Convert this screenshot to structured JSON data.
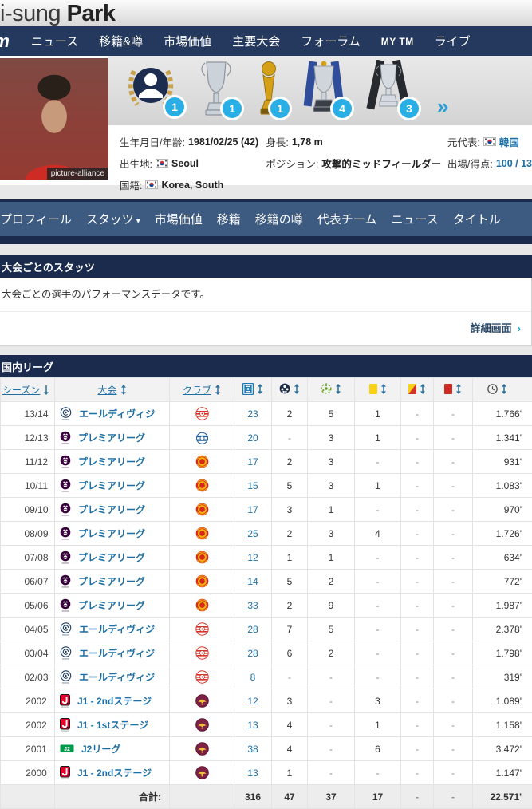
{
  "page_title": {
    "first_name": "Ji-sung",
    "last_name": "Park"
  },
  "colors": {
    "navy": "#1b2b4d",
    "steel_blue": "#3d5a80",
    "link_blue": "#1d6fa5",
    "badge_blue": "#29aee6"
  },
  "nav": {
    "logo": "tm",
    "items": [
      {
        "label": "ニュース",
        "small": false
      },
      {
        "label": "移籍&噂",
        "small": false
      },
      {
        "label": "市場価値",
        "small": false
      },
      {
        "label": "主要大会",
        "small": false
      },
      {
        "label": "フォーラム",
        "small": false
      },
      {
        "label": "MY TM",
        "small": true
      },
      {
        "label": "ライブ",
        "small": false
      }
    ]
  },
  "player": {
    "photo_credit": "picture-alliance",
    "trophies": [
      {
        "name": "player-of-the-season-award",
        "count": "1"
      },
      {
        "name": "champions-league-trophy",
        "count": "1"
      },
      {
        "name": "club-world-cup-trophy",
        "count": "1"
      },
      {
        "name": "premier-league-trophy",
        "count": "4"
      },
      {
        "name": "league-cup-trophy",
        "count": "3"
      }
    ],
    "more_trophies": "»",
    "info": {
      "birth_label": "生年月日/年齢:",
      "birth_value": "1981/02/25 (42)",
      "birthplace_label": "出生地:",
      "birthplace_value": "Seoul",
      "nationality_label": "国籍:",
      "nationality_value": "Korea, South",
      "height_label": "身長:",
      "height_value": "1,78 m",
      "position_label": "ポジション:",
      "position_value": "攻撃的ミッドフィールダー",
      "former_nt_label": "元代表:",
      "former_nt_value": "韓国",
      "caps_label": "出場/得点:",
      "caps_value": "100 / 13"
    }
  },
  "tabs": [
    {
      "label": "プロフィール",
      "dropdown": false
    },
    {
      "label": "スタッツ",
      "dropdown": true
    },
    {
      "label": "市場価値",
      "dropdown": false
    },
    {
      "label": "移籍",
      "dropdown": false
    },
    {
      "label": "移籍の噂",
      "dropdown": false
    },
    {
      "label": "代表チーム",
      "dropdown": false
    },
    {
      "label": "ニュース",
      "dropdown": false
    },
    {
      "label": "タイトル",
      "dropdown": false
    }
  ],
  "stats_section": {
    "title": "大会ごとのスタッツ",
    "description": "大会ごとの選手のパフォーマンスデータです。",
    "detail_link": "詳細画面",
    "detail_chevron": "›"
  },
  "league_table": {
    "title": "国内リーグ",
    "columns": [
      {
        "label": "シーズン",
        "icon": null,
        "sort": "down"
      },
      {
        "label": "大会",
        "icon": null,
        "sort": "both"
      },
      {
        "label": "クラブ",
        "icon": null,
        "sort": "both"
      },
      {
        "label": null,
        "icon": "appearances-icon",
        "sort": "both"
      },
      {
        "label": null,
        "icon": "goals-icon",
        "sort": "both"
      },
      {
        "label": null,
        "icon": "assists-icon",
        "sort": "both"
      },
      {
        "label": null,
        "icon": "yellow-card-icon",
        "sort": "both"
      },
      {
        "label": null,
        "icon": "yellow-red-card-icon",
        "sort": "both"
      },
      {
        "label": null,
        "icon": "red-card-icon",
        "sort": "both"
      },
      {
        "label": null,
        "icon": "minutes-icon",
        "sort": "both"
      }
    ],
    "rows": [
      {
        "season": "13/14",
        "competition": "エールディヴィジ",
        "competition_logo": "eredivisie-logo",
        "club_logo": "psv-logo",
        "appearances": "23",
        "goals": "2",
        "assists": "5",
        "yellow_cards": "1",
        "yellow_red_cards": "-",
        "red_cards": "-",
        "minutes": "1.766'"
      },
      {
        "season": "12/13",
        "competition": "プレミアリーグ",
        "competition_logo": "premier-league-logo",
        "club_logo": "qpr-logo",
        "appearances": "20",
        "goals": "-",
        "assists": "3",
        "yellow_cards": "1",
        "yellow_red_cards": "-",
        "red_cards": "-",
        "minutes": "1.341'"
      },
      {
        "season": "11/12",
        "competition": "プレミアリーグ",
        "competition_logo": "premier-league-logo",
        "club_logo": "man-utd-logo",
        "appearances": "17",
        "goals": "2",
        "assists": "3",
        "yellow_cards": "-",
        "yellow_red_cards": "-",
        "red_cards": "-",
        "minutes": "931'"
      },
      {
        "season": "10/11",
        "competition": "プレミアリーグ",
        "competition_logo": "premier-league-logo",
        "club_logo": "man-utd-logo",
        "appearances": "15",
        "goals": "5",
        "assists": "3",
        "yellow_cards": "1",
        "yellow_red_cards": "-",
        "red_cards": "-",
        "minutes": "1.083'"
      },
      {
        "season": "09/10",
        "competition": "プレミアリーグ",
        "competition_logo": "premier-league-logo",
        "club_logo": "man-utd-logo",
        "appearances": "17",
        "goals": "3",
        "assists": "1",
        "yellow_cards": "-",
        "yellow_red_cards": "-",
        "red_cards": "-",
        "minutes": "970'"
      },
      {
        "season": "08/09",
        "competition": "プレミアリーグ",
        "competition_logo": "premier-league-logo",
        "club_logo": "man-utd-logo",
        "appearances": "25",
        "goals": "2",
        "assists": "3",
        "yellow_cards": "4",
        "yellow_red_cards": "-",
        "red_cards": "-",
        "minutes": "1.726'"
      },
      {
        "season": "07/08",
        "competition": "プレミアリーグ",
        "competition_logo": "premier-league-logo",
        "club_logo": "man-utd-logo",
        "appearances": "12",
        "goals": "1",
        "assists": "1",
        "yellow_cards": "-",
        "yellow_red_cards": "-",
        "red_cards": "-",
        "minutes": "634'"
      },
      {
        "season": "06/07",
        "competition": "プレミアリーグ",
        "competition_logo": "premier-league-logo",
        "club_logo": "man-utd-logo",
        "appearances": "14",
        "goals": "5",
        "assists": "2",
        "yellow_cards": "-",
        "yellow_red_cards": "-",
        "red_cards": "-",
        "minutes": "772'"
      },
      {
        "season": "05/06",
        "competition": "プレミアリーグ",
        "competition_logo": "premier-league-logo",
        "club_logo": "man-utd-logo",
        "appearances": "33",
        "goals": "2",
        "assists": "9",
        "yellow_cards": "-",
        "yellow_red_cards": "-",
        "red_cards": "-",
        "minutes": "1.987'"
      },
      {
        "season": "04/05",
        "competition": "エールディヴィジ",
        "competition_logo": "eredivisie-logo",
        "club_logo": "psv-logo",
        "appearances": "28",
        "goals": "7",
        "assists": "5",
        "yellow_cards": "-",
        "yellow_red_cards": "-",
        "red_cards": "-",
        "minutes": "2.378'"
      },
      {
        "season": "03/04",
        "competition": "エールディヴィジ",
        "competition_logo": "eredivisie-logo",
        "club_logo": "psv-logo",
        "appearances": "28",
        "goals": "6",
        "assists": "2",
        "yellow_cards": "-",
        "yellow_red_cards": "-",
        "red_cards": "-",
        "minutes": "1.798'"
      },
      {
        "season": "02/03",
        "competition": "エールディヴィジ",
        "competition_logo": "eredivisie-logo",
        "club_logo": "psv-logo",
        "appearances": "8",
        "goals": "-",
        "assists": "-",
        "yellow_cards": "-",
        "yellow_red_cards": "-",
        "red_cards": "-",
        "minutes": "319'"
      },
      {
        "season": "2002",
        "competition": "J1 - 2ndステージ",
        "competition_logo": "j1-league-logo",
        "club_logo": "kyoto-logo",
        "appearances": "12",
        "goals": "3",
        "assists": "-",
        "yellow_cards": "3",
        "yellow_red_cards": "-",
        "red_cards": "-",
        "minutes": "1.089'"
      },
      {
        "season": "2002",
        "competition": "J1 - 1stステージ",
        "competition_logo": "j1-league-logo",
        "club_logo": "kyoto-logo",
        "appearances": "13",
        "goals": "4",
        "assists": "-",
        "yellow_cards": "1",
        "yellow_red_cards": "-",
        "red_cards": "-",
        "minutes": "1.158'"
      },
      {
        "season": "2001",
        "competition": "J2リーグ",
        "competition_logo": "j2-league-logo",
        "club_logo": "kyoto-logo",
        "appearances": "38",
        "goals": "4",
        "assists": "-",
        "yellow_cards": "6",
        "yellow_red_cards": "-",
        "red_cards": "-",
        "minutes": "3.472'"
      },
      {
        "season": "2000",
        "competition": "J1 - 2ndステージ",
        "competition_logo": "j1-league-logo",
        "club_logo": "kyoto-logo",
        "appearances": "13",
        "goals": "1",
        "assists": "-",
        "yellow_cards": "-",
        "yellow_red_cards": "-",
        "red_cards": "-",
        "minutes": "1.147'"
      }
    ],
    "footer": {
      "label": "合計:",
      "appearances": "316",
      "goals": "47",
      "assists": "37",
      "yellow_cards": "17",
      "yellow_red_cards": "-",
      "red_cards": "-",
      "minutes": "22.571'"
    }
  }
}
